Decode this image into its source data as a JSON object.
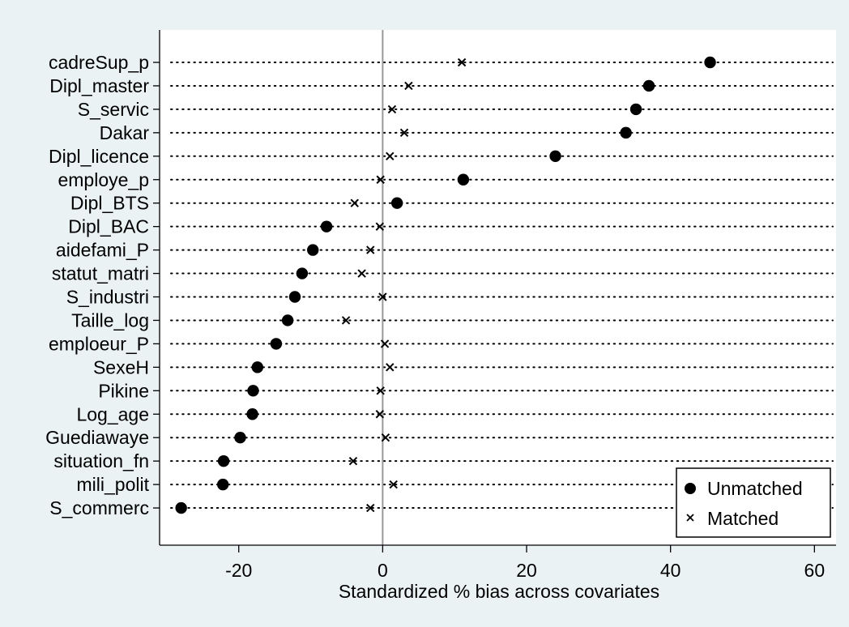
{
  "chart_data": {
    "type": "scatter",
    "xlabel": "Standardized % bias across covariates",
    "ylabel": "",
    "xlim": [
      -31,
      63
    ],
    "xticks": [
      -20,
      0,
      20,
      40,
      60
    ],
    "zero_line": 0,
    "grid": "dotted-rows",
    "legend_position": "bottom-right",
    "colors": {
      "background": "#eaf2f3",
      "plot_bg": "#ffffff",
      "marker": "#000000",
      "zero_line": "#999999"
    },
    "categories": [
      "cadreSup_p",
      "Dipl_master",
      "S_servic",
      "Dakar",
      "Dipl_licence",
      "employe_p",
      "Dipl_BTS",
      "Dipl_BAC",
      "aidefami_P",
      "statut_matri",
      "S_industri",
      "Taille_log",
      "emploeur_P",
      "SexeH",
      "Pikine",
      "Log_age",
      "Guediawaye",
      "situation_fn",
      "mili_polit",
      "S_commerc"
    ],
    "series": [
      {
        "name": "Unmatched",
        "marker": "circle",
        "values": [
          45.5,
          37.0,
          35.2,
          33.8,
          24.0,
          11.2,
          2.0,
          -7.8,
          -9.7,
          -11.2,
          -12.2,
          -13.2,
          -14.8,
          -17.4,
          -18.0,
          -18.1,
          -19.8,
          -22.1,
          -22.2,
          -28.0
        ]
      },
      {
        "name": "Matched",
        "marker": "x",
        "values": [
          11.0,
          3.6,
          1.3,
          3.0,
          1.0,
          -0.3,
          -3.9,
          -0.4,
          -1.7,
          -2.9,
          0.0,
          -5.1,
          0.3,
          1.0,
          -0.3,
          -0.4,
          0.4,
          -4.1,
          1.5,
          -1.7
        ]
      }
    ]
  }
}
